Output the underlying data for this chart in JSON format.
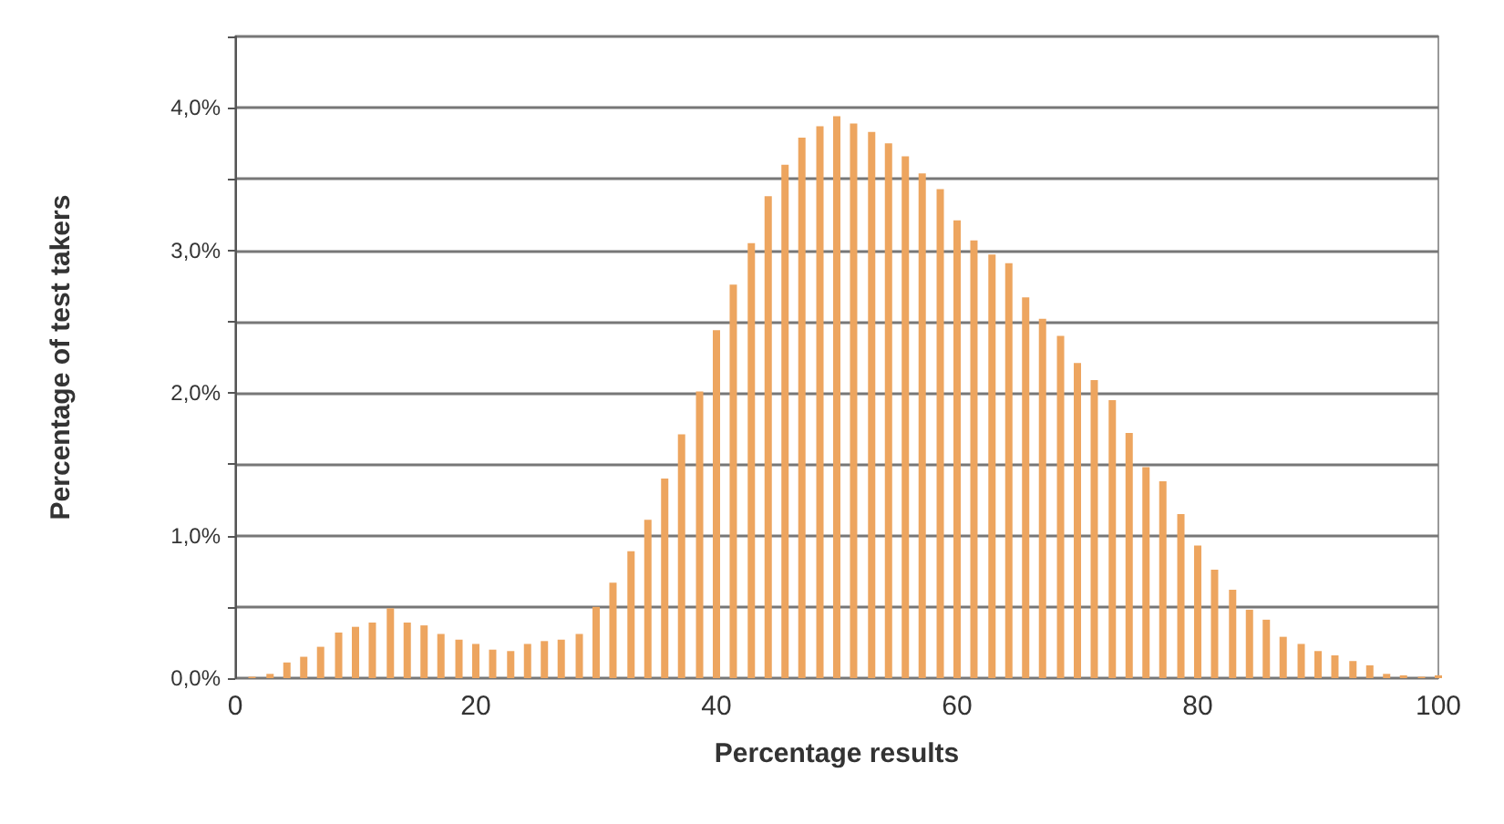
{
  "chart_data": {
    "type": "bar",
    "xlabel": "Percentage results",
    "ylabel": "Percentage of test takers",
    "x": [
      0,
      1.4,
      2.9,
      4.3,
      5.7,
      7.1,
      8.6,
      10,
      11.4,
      12.9,
      14.3,
      15.7,
      17.1,
      18.6,
      20,
      21.4,
      22.9,
      24.3,
      25.7,
      27.1,
      28.6,
      30,
      31.4,
      32.9,
      34.3,
      35.7,
      37.1,
      38.6,
      40,
      41.4,
      42.9,
      44.3,
      45.7,
      47.1,
      48.6,
      50,
      51.4,
      52.9,
      54.3,
      55.7,
      57.1,
      58.6,
      60,
      61.4,
      62.9,
      64.3,
      65.7,
      67.1,
      68.6,
      70,
      71.4,
      72.9,
      74.3,
      75.7,
      77.1,
      78.6,
      80,
      81.4,
      82.9,
      84.3,
      85.7,
      87.1,
      88.6,
      90,
      91.4,
      92.9,
      94.3,
      95.7,
      97.1,
      98.6,
      100
    ],
    "series": [
      {
        "color": "#eda55f",
        "values": [
          0,
          0.01,
          0.03,
          0.11,
          0.15,
          0.22,
          0.32,
          0.36,
          0.39,
          0.49,
          0.39,
          0.37,
          0.31,
          0.27,
          0.24,
          0.2,
          0.19,
          0.24,
          0.26,
          0.27,
          0.31,
          0.5,
          0.67,
          0.89,
          1.11,
          1.4,
          1.71,
          2.01,
          2.44,
          2.76,
          3.05,
          3.38,
          3.6,
          3.79,
          3.87,
          3.94,
          3.89,
          3.83,
          3.75,
          3.66,
          3.54,
          3.43,
          3.21,
          3.07,
          2.97,
          2.91,
          2.67,
          2.52,
          2.4,
          2.21,
          2.09,
          1.95,
          1.72,
          1.48,
          1.38,
          1.15,
          0.93,
          0.76,
          0.62,
          0.48,
          0.41,
          0.29,
          0.24,
          0.19,
          0.16,
          0.12,
          0.09,
          0.03,
          0.02,
          0.01,
          0.02
        ]
      }
    ],
    "xlim": [
      0,
      100
    ],
    "xticks": [
      0,
      20,
      40,
      60,
      80,
      100
    ],
    "ylim": [
      0,
      4.5
    ],
    "yticks": [
      {
        "value": 0,
        "label": "0,0%"
      },
      {
        "value": 0.5,
        "label": null
      },
      {
        "value": 1,
        "label": "1,0%"
      },
      {
        "value": 1.5,
        "label": null
      },
      {
        "value": 2,
        "label": "2,0%"
      },
      {
        "value": 2.5,
        "label": null
      },
      {
        "value": 3,
        "label": "3,0%"
      },
      {
        "value": 3.5,
        "label": null
      },
      {
        "value": 4,
        "label": "4,0%"
      },
      {
        "value": 4.5,
        "label": null
      }
    ],
    "grid": "y"
  }
}
